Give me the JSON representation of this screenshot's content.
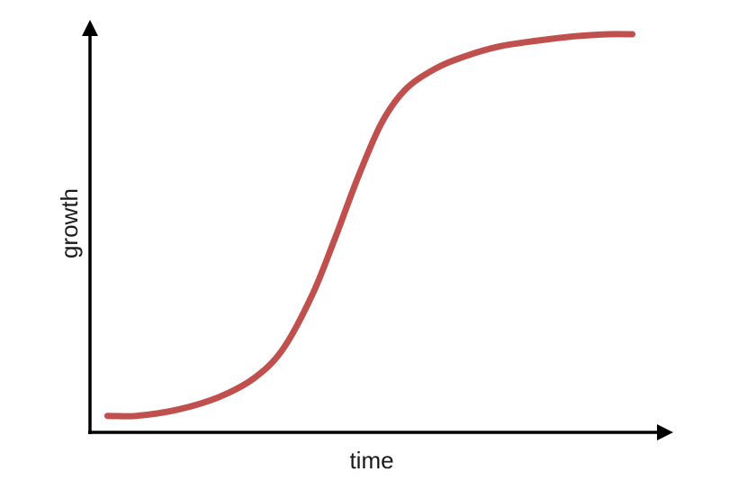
{
  "chart_data": {
    "type": "line",
    "title": "",
    "xlabel": "time",
    "ylabel": "growth",
    "grid": false,
    "legend": "none",
    "xlim": [
      0,
      10
    ],
    "ylim": [
      0,
      10
    ],
    "series": [
      {
        "color": "#c0504d",
        "x": [
          0.3,
          0.8,
          1.5,
          2.2,
          2.8,
          3.3,
          3.8,
          4.2,
          4.6,
          5.0,
          5.4,
          5.9,
          6.4,
          7.0,
          7.7,
          8.3,
          8.9,
          9.3
        ],
        "y": [
          0.4,
          0.4,
          0.55,
          0.85,
          1.3,
          2.0,
          3.3,
          4.7,
          6.2,
          7.5,
          8.3,
          8.8,
          9.1,
          9.35,
          9.5,
          9.6,
          9.65,
          9.65
        ]
      }
    ]
  }
}
